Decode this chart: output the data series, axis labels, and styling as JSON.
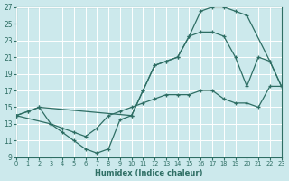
{
  "xlabel": "Humidex (Indice chaleur)",
  "background_color": "#cce9ec",
  "grid_color": "#b8d8db",
  "line_color": "#2e6e64",
  "xmin": 0,
  "xmax": 23,
  "ymin": 9,
  "ymax": 27,
  "yticks": [
    9,
    11,
    13,
    15,
    17,
    19,
    21,
    23,
    25,
    27
  ],
  "xticks": [
    0,
    1,
    2,
    3,
    4,
    5,
    6,
    7,
    8,
    9,
    10,
    11,
    12,
    13,
    14,
    15,
    16,
    17,
    18,
    19,
    20,
    21,
    22,
    23
  ],
  "line_upper_x": [
    0,
    1,
    2,
    10,
    11,
    12,
    13,
    14,
    15,
    16,
    17,
    18,
    19,
    20,
    22,
    23
  ],
  "line_upper_y": [
    14,
    14.5,
    15,
    14,
    17,
    20,
    20.5,
    21,
    23.5,
    26.5,
    27,
    27,
    26.5,
    26,
    20.5,
    17.5
  ],
  "line_mid_x": [
    0,
    1,
    2,
    3,
    4,
    5,
    6,
    7,
    8,
    9,
    10,
    11,
    12,
    13,
    14,
    15,
    16,
    17,
    18,
    19,
    20,
    21,
    22,
    23
  ],
  "line_mid_y": [
    14,
    14.5,
    15,
    13,
    12,
    11,
    10,
    9.5,
    10,
    13.5,
    14,
    17,
    20,
    20.5,
    21,
    23.5,
    24,
    24,
    23.5,
    21,
    17.5,
    21,
    20.5,
    17.5
  ],
  "line_low_x": [
    0,
    3,
    4,
    5,
    6,
    7,
    8,
    9,
    10,
    11,
    12,
    13,
    14,
    15,
    16,
    17,
    18,
    19,
    20,
    21,
    22,
    23
  ],
  "line_low_y": [
    14,
    13,
    12.5,
    12,
    11.5,
    12.5,
    14,
    14.5,
    15,
    15.5,
    16,
    16.5,
    16.5,
    16.5,
    17,
    17,
    16,
    15.5,
    15.5,
    15,
    17.5,
    17.5
  ]
}
